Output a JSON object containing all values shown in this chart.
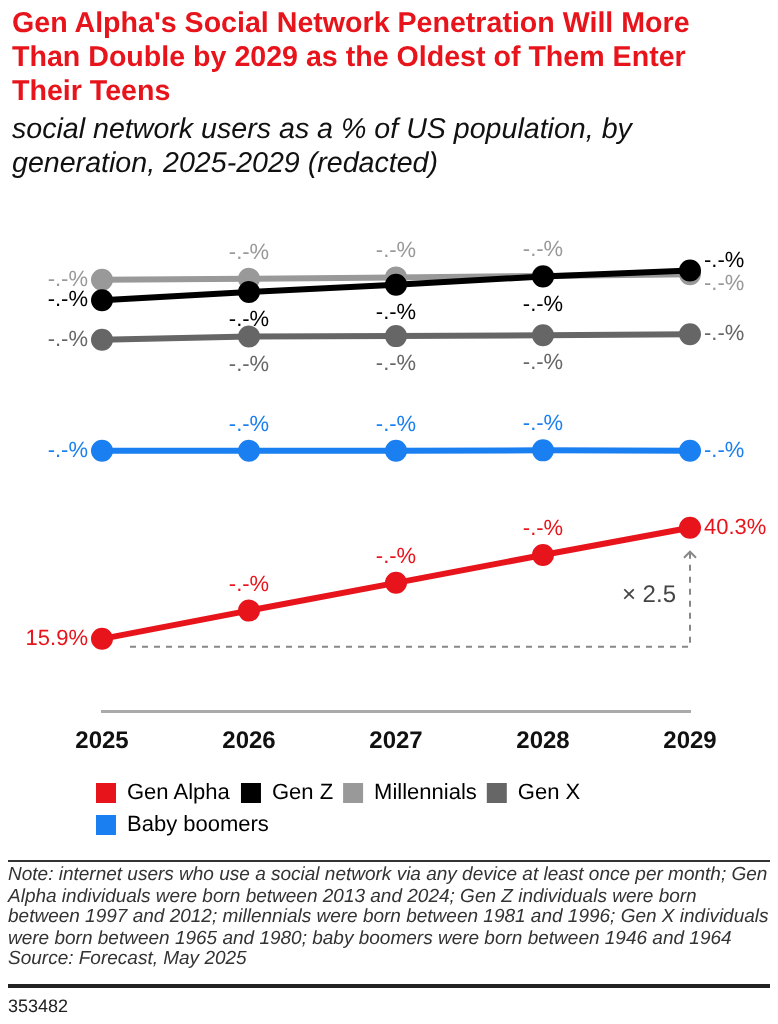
{
  "chart_data": {
    "type": "line",
    "title": "Gen Alpha's Social Network Penetration Will More Than Double by 2029 as the Oldest of Them Enter Their Teens",
    "subtitle": "social network users as a % of US population, by generation, 2025-2029 (redacted)",
    "categories": [
      "2025",
      "2026",
      "2027",
      "2028",
      "2029"
    ],
    "series": [
      {
        "name": "Gen Alpha",
        "color": "#e8141c",
        "values": [
          15.9,
          22.1,
          28.2,
          34.3,
          40.3
        ],
        "value_labels": [
          "15.9%",
          "-.-%",
          "-.-%",
          "-.-%",
          "40.3%"
        ]
      },
      {
        "name": "Gen Z",
        "color": "#000000",
        "values": [
          90.3,
          92.1,
          93.7,
          95.5,
          96.8
        ],
        "value_labels": [
          "-.-%",
          "-.-%",
          "-.-%",
          "-.-%",
          "-.-%"
        ]
      },
      {
        "name": "Millennials",
        "color": "#999999",
        "values": [
          94.8,
          95.0,
          95.3,
          95.6,
          96.0
        ],
        "value_labels": [
          "-.-%",
          "-.-%",
          "-.-%",
          "-.-%",
          "-.-%"
        ]
      },
      {
        "name": "Gen X",
        "color": "#666666",
        "values": [
          81.6,
          82.3,
          82.4,
          82.6,
          82.8
        ],
        "value_labels": [
          "-.-%",
          "-.-%",
          "-.-%",
          "-.-%",
          "-.-%"
        ]
      },
      {
        "name": "Baby boomers",
        "color": "#1a7ff0",
        "values": [
          57.2,
          57.2,
          57.2,
          57.3,
          57.2
        ],
        "value_labels": [
          "-.-%",
          "-.-%",
          "-.-%",
          "-.-%",
          "-.-%"
        ]
      }
    ],
    "legend": "bottom",
    "marker": "circle",
    "line_style": "solid",
    "annotations": [
      "× 2.5",
      "Note: internet users who use a social network via any device at least once per month; Gen Alpha individuals were born between 2013 and 2024; Gen Z individuals were born between 1997 and 2012; millennials were born between 1981 and 1996; Gen X individuals were born between 1965 and 1980; baby boomers were born between 1946 and 1964",
      "Source: Forecast, May 2025",
      "353482"
    ]
  }
}
